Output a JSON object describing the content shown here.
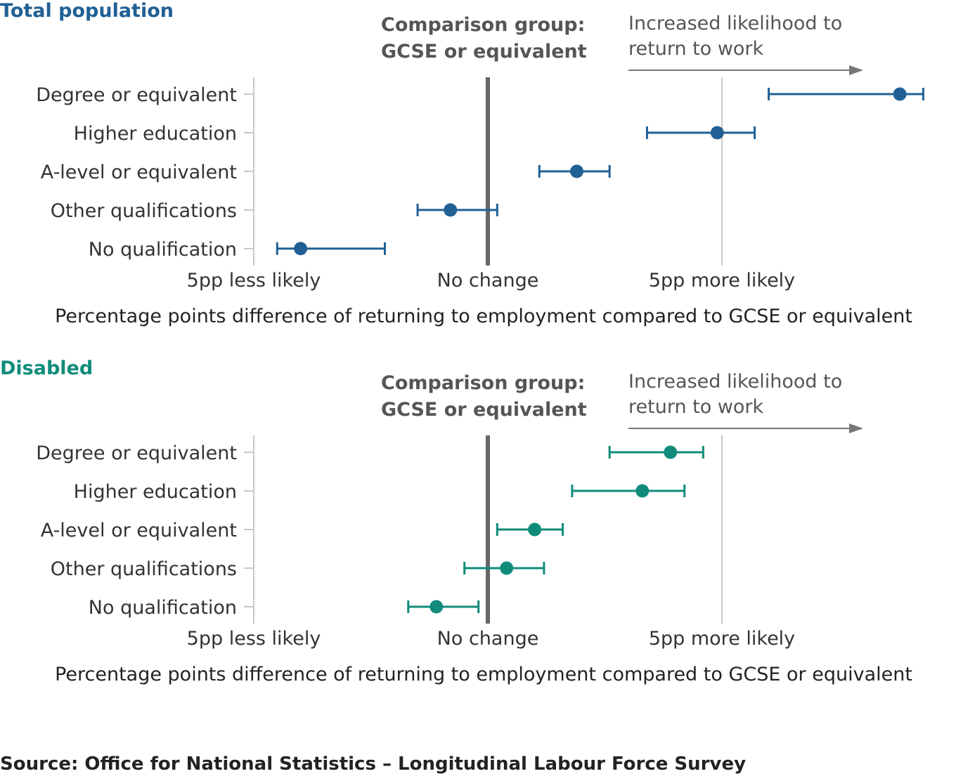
{
  "chart_data": [
    {
      "type": "scatter",
      "title": "Total population",
      "color": "#206095",
      "categories": [
        "Degree or equivalent",
        "Higher education",
        "A-level or equivalent",
        "Other qualifications",
        "No qualification"
      ],
      "values": [
        8.8,
        4.9,
        1.9,
        -0.8,
        -4.0
      ],
      "ci_low": [
        6.0,
        3.4,
        1.1,
        -1.5,
        -4.5
      ],
      "ci_high": [
        9.3,
        5.7,
        2.6,
        0.2,
        -2.2
      ],
      "x_ticks": [
        -5,
        0,
        5
      ],
      "x_tick_labels": [
        "5pp less likely",
        "No change",
        "5pp more likely"
      ],
      "xlim": [
        -5,
        5
      ],
      "xlabel": "Percentage points difference of returning to employment compared to GCSE or equivalent",
      "comparison_label": [
        "Comparison group:",
        "GCSE or equivalent"
      ],
      "direction_label": [
        "Increased likelihood to",
        "return to work"
      ]
    },
    {
      "type": "scatter",
      "title": "Disabled",
      "color": "#118c7b",
      "categories": [
        "Degree or equivalent",
        "Higher education",
        "A-level or equivalent",
        "Other qualifications",
        "No qualification"
      ],
      "values": [
        3.9,
        3.3,
        1.0,
        0.4,
        -1.1
      ],
      "ci_low": [
        2.6,
        1.8,
        0.2,
        -0.5,
        -1.7
      ],
      "ci_high": [
        4.6,
        4.2,
        1.6,
        1.2,
        -0.2
      ],
      "x_ticks": [
        -5,
        0,
        5
      ],
      "x_tick_labels": [
        "5pp less likely",
        "No change",
        "5pp more likely"
      ],
      "xlim": [
        -5,
        5
      ],
      "xlabel": "Percentage points difference of returning to employment compared to GCSE or equivalent",
      "comparison_label": [
        "Comparison group:",
        "GCSE or equivalent"
      ],
      "direction_label": [
        "Increased likelihood to",
        "return to work"
      ]
    }
  ],
  "source": "Source: Office for National Statistics – Longitudinal Labour Force Survey"
}
